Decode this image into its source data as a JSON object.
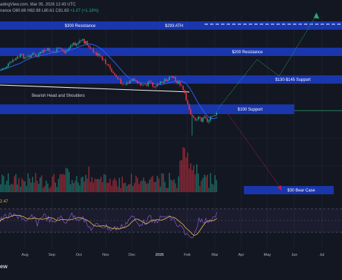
{
  "header": {
    "published": "adingView.com, Mar 05, 2026 12:43 UTC",
    "ohlc_line": "nance  O80.66  H82.98  L80.61  C81.63",
    "change": "+1.07 (+1.18%)"
  },
  "watermark": "ew",
  "rsi_value": "2.47",
  "colors": {
    "background": "#131722",
    "zone": "#1a3ab8",
    "zone_text": "#ffffff",
    "candle_up": "#22ab94",
    "candle_down": "#f23645",
    "ma": "#2962ff",
    "rsi": "#7e57c2",
    "rsi_ma": "#e2b54a",
    "trend_up": "#27a96b",
    "trend_down": "#c2185b",
    "white_line": "#ffffff"
  },
  "chart_data": {
    "type": "candlestick",
    "x_ticks": [
      "Aug",
      "Sep",
      "Oct",
      "Nov",
      "Dec",
      "2026",
      "Feb",
      "Mar",
      "Apr",
      "May",
      "Jun",
      "Jul"
    ],
    "annotations": {
      "zones": [
        {
          "label": "$300 Resistance"
        },
        {
          "label": "$293 ATH"
        },
        {
          "label": "$200 Resistance"
        },
        {
          "label": "$130-$145 Support"
        },
        {
          "label": "$100 Support"
        },
        {
          "label": "$30 Bear Case"
        }
      ],
      "pattern_label": "Bearish Head and Shoulders"
    }
  }
}
